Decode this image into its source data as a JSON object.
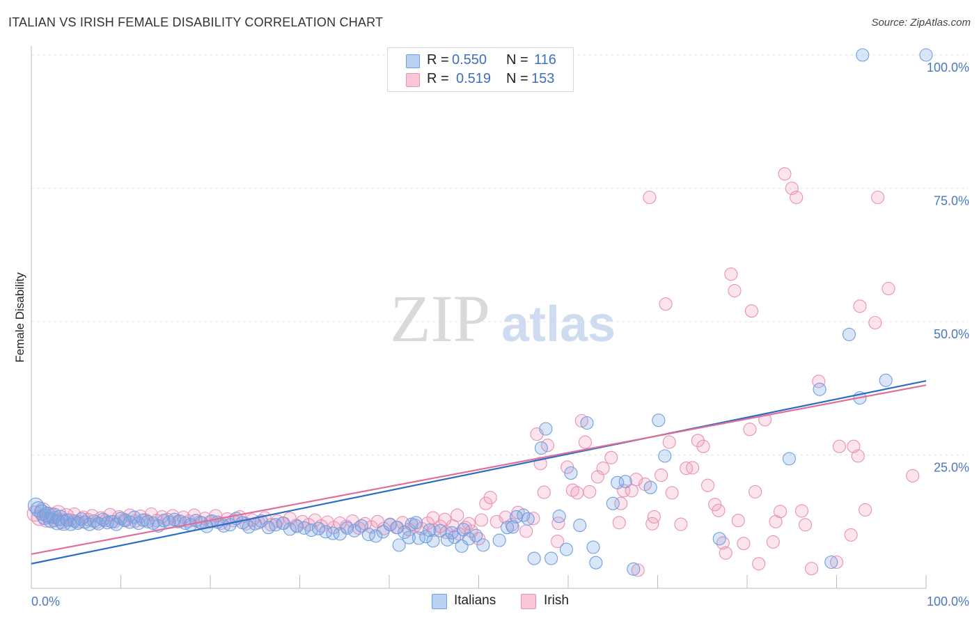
{
  "header": {
    "title": "ITALIAN VS IRISH FEMALE DISABILITY CORRELATION CHART",
    "source": "Source: ZipAtlas.com"
  },
  "legend": {
    "rows": [
      {
        "r_label": "R =",
        "r_value": "0.550",
        "n_label": "N =",
        "n_value": "116",
        "color": "#6e9ee0"
      },
      {
        "r_label": "R =",
        "r_value": "0.519",
        "n_label": "N =",
        "n_value": "153",
        "color": "#e891b0"
      }
    ]
  },
  "bottom_legend": {
    "items": [
      {
        "label": "Italians",
        "color": "#6e9ee0"
      },
      {
        "label": "Irish",
        "color": "#e891b0"
      }
    ]
  },
  "watermark": {
    "zip": "ZIP",
    "atlas": "atlas"
  },
  "chart_data": {
    "type": "scatter",
    "title": "ITALIAN VS IRISH FEMALE DISABILITY CORRELATION CHART",
    "xlabel": "",
    "ylabel": "Female Disability",
    "xlim": [
      0,
      100
    ],
    "ylim": [
      0,
      100
    ],
    "x_tick_labels": [
      "0.0%",
      "100.0%"
    ],
    "y_tick_labels": [
      "25.0%",
      "50.0%",
      "75.0%",
      "100.0%"
    ],
    "y_tick_values": [
      25,
      50,
      75,
      100
    ],
    "grid": "horizontal dashed",
    "legend_position": "top-center",
    "series": [
      {
        "name": "Italians",
        "color": "#6e9ee0",
        "line_color": "#2b6cc4",
        "r": 0.55,
        "n": 116,
        "trend": {
          "x": [
            0,
            100
          ],
          "y": [
            4.6,
            38.9
          ]
        },
        "points": [
          [
            0.5,
            15.5
          ],
          [
            0.8,
            14.8
          ],
          [
            1.2,
            14.2
          ],
          [
            1.5,
            13.4
          ],
          [
            1.8,
            13.8
          ],
          [
            2.2,
            12.8
          ],
          [
            2.5,
            13.6
          ],
          [
            2.9,
            12.4
          ],
          [
            3.2,
            13.2
          ],
          [
            3.6,
            12.3
          ],
          [
            4.0,
            12.8
          ],
          [
            4.4,
            12.0
          ],
          [
            4.8,
            12.6
          ],
          [
            5.2,
            12.2
          ],
          [
            5.6,
            13.0
          ],
          [
            6.0,
            12.4
          ],
          [
            6.5,
            12.0
          ],
          [
            7.0,
            12.6
          ],
          [
            7.5,
            12.1
          ],
          [
            8.0,
            12.9
          ],
          [
            8.5,
            12.3
          ],
          [
            9.0,
            12.5
          ],
          [
            9.5,
            12.0
          ],
          [
            10.0,
            13.1
          ],
          [
            10.5,
            12.7
          ],
          [
            11.0,
            12.4
          ],
          [
            11.5,
            13.3
          ],
          [
            12.0,
            12.2
          ],
          [
            12.5,
            12.8
          ],
          [
            13.0,
            12.5
          ],
          [
            13.6,
            12.2
          ],
          [
            14.2,
            11.7
          ],
          [
            14.8,
            12.7
          ],
          [
            15.4,
            12.4
          ],
          [
            16.0,
            12.9
          ],
          [
            16.6,
            12.6
          ],
          [
            17.2,
            12.2
          ],
          [
            17.8,
            11.9
          ],
          [
            18.4,
            12.7
          ],
          [
            19.0,
            12.3
          ],
          [
            19.6,
            11.6
          ],
          [
            20.2,
            12.6
          ],
          [
            20.8,
            12.4
          ],
          [
            21.5,
            11.7
          ],
          [
            22.2,
            11.9
          ],
          [
            22.9,
            13.1
          ],
          [
            23.6,
            12.3
          ],
          [
            24.3,
            11.5
          ],
          [
            25.0,
            12.1
          ],
          [
            25.7,
            12.6
          ],
          [
            26.5,
            11.4
          ],
          [
            27.3,
            11.9
          ],
          [
            28.1,
            12.2
          ],
          [
            28.9,
            11.1
          ],
          [
            29.7,
            11.6
          ],
          [
            30.5,
            11.3
          ],
          [
            31.3,
            10.9
          ],
          [
            32.1,
            11.2
          ],
          [
            32.9,
            10.6
          ],
          [
            33.7,
            10.3
          ],
          [
            34.5,
            10.2
          ],
          [
            35.3,
            11.3
          ],
          [
            36.1,
            10.8
          ],
          [
            36.9,
            11.7
          ],
          [
            37.7,
            10.1
          ],
          [
            38.5,
            9.8
          ],
          [
            39.3,
            10.6
          ],
          [
            40.1,
            11.9
          ],
          [
            40.9,
            11.4
          ],
          [
            41.7,
            10.5
          ],
          [
            42.5,
            12.0
          ],
          [
            43.3,
            9.4
          ],
          [
            44.1,
            9.7
          ],
          [
            44.9,
            8.9
          ],
          [
            45.7,
            10.8
          ],
          [
            46.5,
            9.1
          ],
          [
            47.3,
            9.6
          ],
          [
            48.1,
            7.9
          ],
          [
            48.9,
            9.3
          ],
          [
            49.7,
            9.9
          ],
          [
            42.2,
            9.5
          ],
          [
            41.1,
            8.1
          ],
          [
            43.0,
            12.3
          ],
          [
            44.5,
            10.9
          ],
          [
            47.0,
            10.4
          ],
          [
            48.3,
            11.0
          ],
          [
            50.5,
            8.1
          ],
          [
            52.3,
            9.0
          ],
          [
            53.2,
            11.4
          ],
          [
            54.2,
            13.4
          ],
          [
            55.0,
            13.7
          ],
          [
            56.2,
            5.6
          ],
          [
            57.0,
            26.3
          ],
          [
            57.5,
            29.9
          ],
          [
            58.1,
            5.6
          ],
          [
            59.0,
            13.5
          ],
          [
            59.8,
            7.3
          ],
          [
            60.3,
            21.6
          ],
          [
            61.3,
            11.8
          ],
          [
            62.1,
            31.0
          ],
          [
            62.8,
            7.7
          ],
          [
            63.1,
            4.8
          ],
          [
            65.0,
            15.9
          ],
          [
            65.5,
            19.8
          ],
          [
            66.4,
            20.0
          ],
          [
            67.3,
            3.6
          ],
          [
            69.2,
            18.9
          ],
          [
            70.1,
            31.5
          ],
          [
            70.8,
            24.8
          ],
          [
            76.9,
            9.3
          ],
          [
            84.7,
            24.3
          ],
          [
            88.1,
            37.3
          ],
          [
            91.4,
            47.6
          ],
          [
            92.6,
            35.7
          ],
          [
            95.5,
            39.0
          ],
          [
            89.4,
            4.9
          ],
          [
            92.9,
            100.0
          ],
          [
            100.0,
            100.0
          ],
          [
            55.5,
            13.0
          ],
          [
            53.8,
            11.5
          ]
        ]
      },
      {
        "name": "Irish",
        "color": "#e891b0",
        "line_color": "#e06e98",
        "r": 0.519,
        "n": 153,
        "trend": {
          "x": [
            0,
            100
          ],
          "y": [
            6.4,
            38.1
          ]
        },
        "points": [
          [
            0.4,
            14.0
          ],
          [
            0.9,
            13.2
          ],
          [
            1.3,
            14.6
          ],
          [
            1.7,
            12.9
          ],
          [
            2.1,
            13.7
          ],
          [
            2.6,
            13.0
          ],
          [
            3.0,
            14.1
          ],
          [
            3.4,
            12.6
          ],
          [
            3.9,
            13.5
          ],
          [
            4.3,
            12.8
          ],
          [
            4.8,
            13.9
          ],
          [
            5.3,
            12.5
          ],
          [
            5.8,
            13.3
          ],
          [
            6.3,
            12.9
          ],
          [
            6.8,
            13.6
          ],
          [
            7.3,
            12.4
          ],
          [
            7.8,
            13.2
          ],
          [
            8.3,
            12.7
          ],
          [
            8.8,
            13.8
          ],
          [
            9.3,
            12.5
          ],
          [
            9.8,
            13.4
          ],
          [
            10.4,
            12.9
          ],
          [
            11.0,
            13.7
          ],
          [
            11.6,
            12.6
          ],
          [
            12.2,
            13.5
          ],
          [
            12.8,
            12.8
          ],
          [
            13.4,
            13.9
          ],
          [
            14.0,
            12.7
          ],
          [
            14.6,
            13.4
          ],
          [
            15.2,
            12.9
          ],
          [
            15.8,
            13.6
          ],
          [
            16.4,
            12.5
          ],
          [
            17.0,
            13.3
          ],
          [
            17.6,
            12.6
          ],
          [
            18.2,
            13.7
          ],
          [
            18.8,
            12.4
          ],
          [
            19.4,
            13.1
          ],
          [
            20.0,
            12.5
          ],
          [
            20.6,
            13.6
          ],
          [
            21.2,
            12.2
          ],
          [
            21.9,
            13.0
          ],
          [
            22.6,
            12.7
          ],
          [
            23.3,
            13.4
          ],
          [
            24.0,
            12.1
          ],
          [
            24.7,
            12.8
          ],
          [
            25.4,
            12.3
          ],
          [
            26.1,
            13.2
          ],
          [
            26.8,
            11.9
          ],
          [
            27.5,
            12.6
          ],
          [
            28.2,
            12.2
          ],
          [
            28.9,
            13.1
          ],
          [
            29.6,
            11.8
          ],
          [
            30.3,
            12.5
          ],
          [
            31.0,
            11.9
          ],
          [
            31.7,
            12.8
          ],
          [
            32.4,
            11.7
          ],
          [
            33.1,
            12.4
          ],
          [
            33.8,
            11.4
          ],
          [
            34.5,
            12.2
          ],
          [
            35.2,
            11.6
          ],
          [
            35.9,
            12.6
          ],
          [
            36.6,
            11.3
          ],
          [
            37.3,
            12.1
          ],
          [
            38.0,
            11.5
          ],
          [
            38.7,
            12.5
          ],
          [
            39.4,
            11.2
          ],
          [
            40.1,
            12.0
          ],
          [
            40.8,
            11.4
          ],
          [
            41.5,
            12.3
          ],
          [
            42.2,
            11.0
          ],
          [
            42.9,
            11.8
          ],
          [
            43.6,
            11.2
          ],
          [
            44.3,
            12.2
          ],
          [
            45.0,
            10.9
          ],
          [
            45.7,
            11.6
          ],
          [
            46.4,
            10.5
          ],
          [
            47.1,
            11.7
          ],
          [
            47.8,
            10.2
          ],
          [
            48.5,
            11.4
          ],
          [
            49.2,
            10.7
          ],
          [
            50.0,
            9.3
          ],
          [
            50.3,
            12.8
          ],
          [
            50.8,
            15.9
          ],
          [
            51.3,
            17.0
          ],
          [
            52.0,
            12.5
          ],
          [
            53.0,
            13.3
          ],
          [
            53.7,
            11.9
          ],
          [
            54.4,
            14.2
          ],
          [
            55.3,
            10.7
          ],
          [
            56.1,
            13.1
          ],
          [
            56.5,
            28.9
          ],
          [
            56.9,
            23.4
          ],
          [
            57.3,
            18.0
          ],
          [
            57.7,
            26.8
          ],
          [
            58.8,
            8.8
          ],
          [
            58.9,
            12.2
          ],
          [
            59.9,
            22.7
          ],
          [
            60.5,
            18.4
          ],
          [
            61.0,
            17.9
          ],
          [
            61.5,
            31.4
          ],
          [
            61.9,
            27.4
          ],
          [
            62.4,
            18.1
          ],
          [
            63.3,
            20.9
          ],
          [
            63.9,
            22.5
          ],
          [
            64.8,
            24.5
          ],
          [
            65.7,
            12.3
          ],
          [
            65.9,
            15.9
          ],
          [
            66.2,
            18.3
          ],
          [
            67.1,
            18.3
          ],
          [
            67.6,
            20.4
          ],
          [
            68.6,
            19.5
          ],
          [
            69.4,
            12.1
          ],
          [
            69.6,
            13.4
          ],
          [
            70.4,
            21.2
          ],
          [
            71.3,
            27.4
          ],
          [
            71.6,
            17.9
          ],
          [
            72.6,
            12.0
          ],
          [
            73.2,
            22.5
          ],
          [
            73.9,
            22.6
          ],
          [
            74.5,
            27.7
          ],
          [
            75.1,
            26.6
          ],
          [
            75.6,
            19.3
          ],
          [
            76.4,
            15.7
          ],
          [
            76.8,
            14.6
          ],
          [
            77.3,
            8.5
          ],
          [
            77.6,
            6.6
          ],
          [
            78.2,
            58.9
          ],
          [
            78.6,
            55.8
          ],
          [
            79.0,
            12.7
          ],
          [
            80.3,
            29.8
          ],
          [
            80.5,
            52.0
          ],
          [
            80.9,
            18.1
          ],
          [
            81.3,
            4.6
          ],
          [
            82.0,
            31.6
          ],
          [
            82.9,
            8.7
          ],
          [
            83.2,
            12.5
          ],
          [
            83.7,
            14.4
          ],
          [
            85.0,
            75.0
          ],
          [
            85.5,
            73.3
          ],
          [
            87.2,
            3.7
          ],
          [
            69.1,
            73.3
          ],
          [
            70.9,
            53.3
          ],
          [
            90.0,
            4.9
          ],
          [
            90.3,
            26.6
          ],
          [
            91.9,
            26.6
          ],
          [
            92.4,
            24.8
          ],
          [
            92.6,
            52.9
          ],
          [
            94.6,
            73.3
          ],
          [
            95.8,
            56.2
          ],
          [
            94.3,
            49.8
          ],
          [
            91.6,
            10.0
          ],
          [
            93.2,
            14.7
          ],
          [
            84.2,
            77.7
          ],
          [
            88.0,
            38.8
          ],
          [
            98.5,
            21.1
          ],
          [
            86.1,
            14.5
          ],
          [
            86.5,
            11.9
          ],
          [
            79.6,
            8.4
          ],
          [
            67.8,
            3.4
          ],
          [
            44.9,
            13.2
          ],
          [
            46.2,
            12.9
          ],
          [
            47.6,
            13.7
          ],
          [
            48.9,
            12.1
          ]
        ]
      }
    ]
  }
}
